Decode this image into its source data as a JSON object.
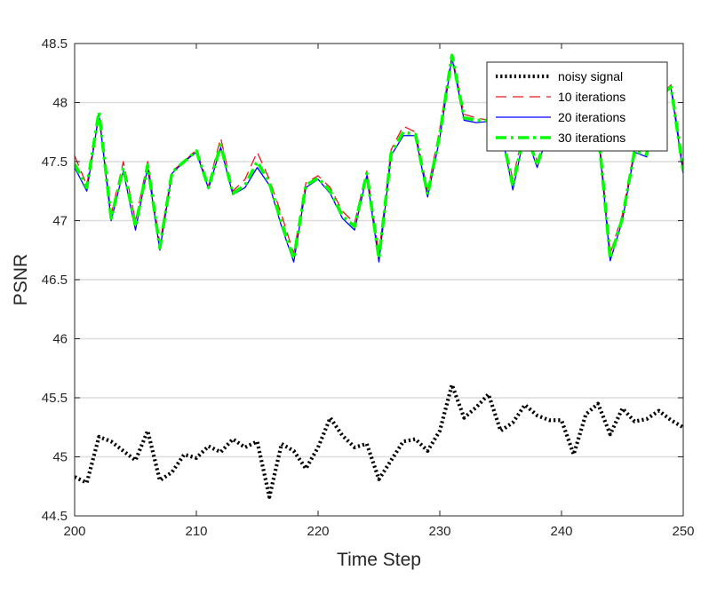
{
  "chart_data": {
    "type": "line",
    "title": "",
    "xlabel": "Time Step",
    "ylabel": "PSNR",
    "xlim": [
      200,
      250
    ],
    "ylim": [
      44.5,
      48.5
    ],
    "xticks": [
      "200",
      "210",
      "220",
      "230",
      "240",
      "250"
    ],
    "yticks": [
      "44.5",
      "45",
      "45.5",
      "46",
      "46.5",
      "47",
      "47.5",
      "48",
      "48.5"
    ],
    "grid": "horizontal",
    "legend_position": "top-right",
    "x": [
      200,
      201,
      202,
      203,
      204,
      205,
      206,
      207,
      208,
      209,
      210,
      211,
      212,
      213,
      214,
      215,
      216,
      217,
      218,
      219,
      220,
      221,
      222,
      223,
      224,
      225,
      226,
      227,
      228,
      229,
      230,
      231,
      232,
      233,
      234,
      235,
      236,
      237,
      238,
      239,
      240,
      241,
      242,
      243,
      244,
      245,
      246,
      247,
      248,
      249,
      250
    ],
    "series": [
      {
        "name": "noisy signal",
        "color": "#000000",
        "style": "dotted",
        "values": [
          44.83,
          44.78,
          45.17,
          45.13,
          45.05,
          44.97,
          45.22,
          44.8,
          44.87,
          45.02,
          44.99,
          45.09,
          45.04,
          45.15,
          45.08,
          45.13,
          44.66,
          45.11,
          45.05,
          44.9,
          45.08,
          45.33,
          45.18,
          45.08,
          45.11,
          44.81,
          44.97,
          45.13,
          45.15,
          45.05,
          45.22,
          45.61,
          45.33,
          45.42,
          45.53,
          45.22,
          45.29,
          45.44,
          45.35,
          45.31,
          45.31,
          45.02,
          45.36,
          45.45,
          45.19,
          45.41,
          45.3,
          45.32,
          45.39,
          45.31,
          45.25
        ]
      },
      {
        "name": "10  iterations",
        "color": "#e41a1c",
        "style": "dashed",
        "values": [
          47.55,
          47.3,
          47.9,
          47.05,
          47.5,
          47.0,
          47.5,
          46.8,
          47.42,
          47.5,
          47.6,
          47.3,
          47.7,
          47.25,
          47.35,
          47.58,
          47.35,
          47.05,
          46.72,
          47.32,
          47.38,
          47.28,
          47.08,
          46.98,
          47.42,
          46.72,
          47.6,
          47.8,
          47.75,
          47.25,
          47.78,
          48.4,
          47.9,
          47.87,
          47.85,
          47.8,
          47.35,
          47.82,
          47.5,
          47.82,
          47.78,
          47.68,
          47.82,
          47.8,
          46.72,
          47.05,
          47.6,
          47.58,
          48.05,
          48.15,
          47.45
        ]
      },
      {
        "name": "20  iterations",
        "color": "#0000ff",
        "style": "solid",
        "values": [
          47.45,
          47.25,
          47.9,
          47.0,
          47.42,
          46.92,
          47.45,
          46.75,
          47.4,
          47.5,
          47.58,
          47.27,
          47.62,
          47.22,
          47.28,
          47.45,
          47.3,
          46.95,
          46.65,
          47.28,
          47.35,
          47.23,
          47.02,
          46.92,
          47.38,
          46.65,
          47.55,
          47.72,
          47.72,
          47.2,
          47.7,
          48.38,
          47.85,
          47.83,
          47.84,
          47.78,
          47.26,
          47.75,
          47.45,
          47.78,
          47.74,
          47.62,
          47.78,
          47.76,
          46.66,
          47.0,
          47.58,
          47.54,
          48.05,
          48.12,
          47.4
        ]
      },
      {
        "name": "30  iterations",
        "color": "#00ff00",
        "style": "dashdot",
        "values": [
          47.48,
          47.28,
          47.92,
          47.02,
          47.45,
          46.95,
          47.47,
          46.77,
          47.41,
          47.5,
          47.59,
          47.28,
          47.64,
          47.23,
          47.3,
          47.5,
          47.32,
          46.98,
          46.68,
          47.3,
          47.36,
          47.25,
          47.04,
          46.95,
          47.4,
          46.68,
          47.57,
          47.75,
          47.73,
          47.22,
          47.73,
          48.4,
          47.87,
          47.85,
          47.85,
          47.79,
          47.29,
          47.78,
          47.47,
          47.8,
          47.76,
          47.65,
          47.8,
          47.78,
          46.68,
          47.02,
          47.59,
          47.56,
          48.05,
          48.13,
          47.42
        ]
      }
    ]
  }
}
